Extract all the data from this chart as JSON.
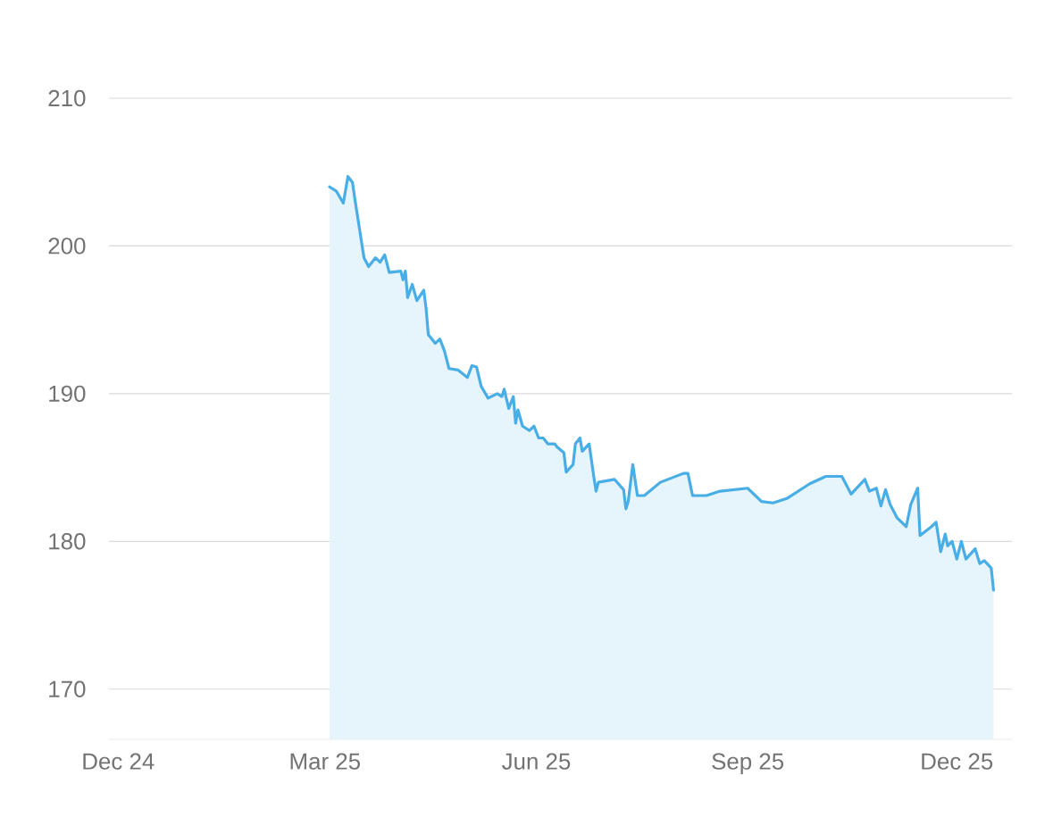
{
  "chart_data": {
    "type": "area",
    "color": "#4aaee6",
    "grid": "y",
    "xlim": [
      "2024-11-27",
      "2025-12-25"
    ],
    "ylim": [
      166.6,
      210
    ],
    "xticks": [
      {
        "value": "2024-12-01",
        "label": "Dec 24"
      },
      {
        "value": "2025-03-01",
        "label": "Mar 25"
      },
      {
        "value": "2025-06-01",
        "label": "Jun 25"
      },
      {
        "value": "2025-09-01",
        "label": "Sep 25"
      },
      {
        "value": "2025-12-01",
        "label": "Dec 25"
      }
    ],
    "yticks": [
      170,
      180,
      190,
      200,
      210
    ],
    "x": [
      "2025-03-03",
      "2025-03-06",
      "2025-03-09",
      "2025-03-11",
      "2025-03-13",
      "2025-03-14",
      "2025-03-16",
      "2025-03-18",
      "2025-03-20",
      "2025-03-23",
      "2025-03-25",
      "2025-03-27",
      "2025-03-29",
      "2025-04-03",
      "2025-04-04",
      "2025-04-05",
      "2025-04-06",
      "2025-04-08",
      "2025-04-10",
      "2025-04-13",
      "2025-04-14",
      "2025-04-15",
      "2025-04-18",
      "2025-04-20",
      "2025-04-22",
      "2025-04-24",
      "2025-04-28",
      "2025-05-02",
      "2025-05-04",
      "2025-05-06",
      "2025-05-08",
      "2025-05-11",
      "2025-05-15",
      "2025-05-17",
      "2025-05-18",
      "2025-05-20",
      "2025-05-22",
      "2025-05-23",
      "2025-05-24",
      "2025-05-26",
      "2025-05-29",
      "2025-05-31",
      "2025-06-02",
      "2025-06-04",
      "2025-06-06",
      "2025-06-09",
      "2025-06-10",
      "2025-06-13",
      "2025-06-14",
      "2025-06-17",
      "2025-06-18",
      "2025-06-20",
      "2025-06-21",
      "2025-06-24",
      "2025-06-26",
      "2025-06-27",
      "2025-06-28",
      "2025-07-05",
      "2025-07-09",
      "2025-07-10",
      "2025-07-11",
      "2025-07-13",
      "2025-07-15",
      "2025-07-18",
      "2025-07-25",
      "2025-08-04",
      "2025-08-06",
      "2025-08-08",
      "2025-08-14",
      "2025-08-20",
      "2025-09-01",
      "2025-09-07",
      "2025-09-12",
      "2025-09-18",
      "2025-09-28",
      "2025-10-05",
      "2025-10-12",
      "2025-10-16",
      "2025-10-22",
      "2025-10-24",
      "2025-10-27",
      "2025-10-29",
      "2025-10-31",
      "2025-11-02",
      "2025-11-05",
      "2025-11-09",
      "2025-11-11",
      "2025-11-14",
      "2025-11-15",
      "2025-11-20",
      "2025-11-22",
      "2025-11-24",
      "2025-11-26",
      "2025-11-27",
      "2025-11-29",
      "2025-12-01",
      "2025-12-03",
      "2025-12-05",
      "2025-12-09",
      "2025-12-11",
      "2025-12-13",
      "2025-12-16",
      "2025-12-17"
    ],
    "values": [
      204.0,
      203.7,
      202.9,
      204.7,
      204.3,
      203.2,
      201.2,
      199.2,
      198.6,
      199.2,
      198.9,
      199.4,
      198.2,
      198.3,
      197.7,
      198.3,
      196.5,
      197.4,
      196.3,
      197.0,
      195.8,
      194.0,
      193.4,
      193.7,
      192.9,
      191.7,
      191.6,
      191.1,
      191.9,
      191.8,
      190.5,
      189.7,
      190.0,
      189.8,
      190.3,
      189.0,
      189.8,
      188.0,
      188.9,
      187.8,
      187.5,
      187.8,
      187.0,
      187.0,
      186.6,
      186.6,
      186.4,
      186.0,
      184.7,
      185.2,
      186.6,
      187.0,
      186.1,
      186.6,
      184.4,
      183.4,
      184.0,
      184.2,
      183.5,
      182.2,
      182.7,
      185.2,
      183.1,
      183.1,
      184.0,
      184.6,
      184.6,
      183.1,
      183.1,
      183.4,
      183.6,
      182.7,
      182.6,
      182.9,
      183.9,
      184.4,
      184.4,
      183.2,
      184.2,
      183.4,
      183.6,
      182.4,
      183.5,
      182.5,
      181.6,
      181.0,
      182.5,
      183.6,
      180.4,
      181.0,
      181.3,
      179.3,
      180.5,
      179.7,
      180.0,
      178.8,
      180.0,
      178.8,
      179.5,
      178.5,
      178.7,
      178.2,
      176.7
    ]
  }
}
